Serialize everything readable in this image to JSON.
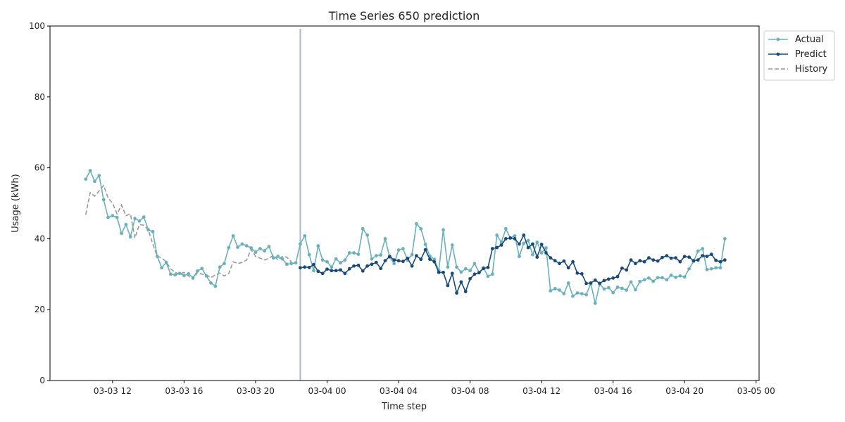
{
  "chart_data": {
    "type": "line",
    "title": "Time Series 650 prediction",
    "xlabel": "Time step",
    "ylabel": "Usage (kWh)",
    "ylim": [
      0,
      100
    ],
    "yticks": [
      "0",
      "20",
      "40",
      "60",
      "80",
      "100"
    ],
    "xlim": [
      "2024-03-03 08:30",
      "2024-03-05 00:10"
    ],
    "xticks": [
      {
        "t": "2024-03-03 12:00",
        "label": "03-03 12"
      },
      {
        "t": "2024-03-03 16:00",
        "label": "03-03 16"
      },
      {
        "t": "2024-03-03 20:00",
        "label": "03-03 20"
      },
      {
        "t": "2024-03-04 00:00",
        "label": "03-04 00"
      },
      {
        "t": "2024-03-04 04:00",
        "label": "03-04 04"
      },
      {
        "t": "2024-03-04 08:00",
        "label": "03-04 08"
      },
      {
        "t": "2024-03-04 12:00",
        "label": "03-04 12"
      },
      {
        "t": "2024-03-04 16:00",
        "label": "03-04 16"
      },
      {
        "t": "2024-03-04 20:00",
        "label": "03-04 20"
      },
      {
        "t": "2024-03-05 00:00",
        "label": "03-05 00"
      }
    ],
    "interval_minutes": 15,
    "forecast_start": "2024-03-03 22:30",
    "legend": {
      "placement": "outside-top-right",
      "entries": [
        "Actual",
        "Predict",
        "History"
      ]
    },
    "grid": false,
    "series": [
      {
        "name": "Actual",
        "color": "#6ab0bd",
        "marker": "dot",
        "line": "solid",
        "start": "2024-03-03 10:30",
        "values": [
          56.8,
          59.2,
          56.2,
          57.8,
          51.0,
          46.0,
          46.5,
          46.0,
          41.5,
          44.0,
          40.5,
          45.7,
          45.0,
          46.1,
          42.5,
          42.0,
          35.0,
          31.8,
          33.3,
          30.0,
          29.8,
          30.2,
          29.6,
          30.1,
          29.0,
          30.9,
          31.6,
          29.5,
          27.5,
          26.6,
          32.0,
          33.0,
          37.5,
          40.8,
          37.6,
          38.5,
          38.0,
          37.4,
          36.2,
          37.2,
          36.6,
          37.8,
          34.6,
          35.0,
          34.3,
          32.8,
          33.0,
          33.2,
          38.5,
          40.8,
          35.5,
          31.0,
          38.0,
          34.0,
          33.5,
          32.0,
          34.3,
          33.2,
          34.0,
          36.0,
          36.0,
          35.6,
          42.8,
          41.0,
          34.3,
          35.2,
          35.4,
          40.0,
          34.8,
          33.0,
          36.8,
          37.2,
          34.0,
          35.5,
          44.2,
          42.8,
          38.4,
          35.1,
          34.2,
          31.0,
          42.5,
          32.0,
          38.2,
          32.0,
          30.6,
          31.5,
          31.0,
          33.0,
          30.5,
          31.8,
          29.4,
          30.0,
          41.0,
          39.0,
          42.8,
          40.2,
          40.8,
          35.0,
          38.7,
          39.5,
          35.5,
          39.0,
          36.0,
          37.4,
          25.3,
          25.9,
          25.5,
          24.5,
          27.5,
          23.8,
          24.7,
          24.5,
          24.2,
          27.4,
          21.8,
          27.2,
          25.8,
          26.2,
          24.8,
          26.3,
          26.0,
          25.5,
          27.8,
          25.6,
          27.9,
          28.4,
          28.9,
          28.0,
          29.0,
          29.0,
          28.4,
          29.7,
          29.1,
          29.5,
          29.2,
          31.5,
          33.6,
          36.5,
          37.2,
          31.3,
          31.5,
          31.8,
          31.8,
          40.0
        ]
      },
      {
        "name": "Predict",
        "color": "#1a4a7a",
        "marker": "dot",
        "line": "solid",
        "start": "2024-03-03 22:30",
        "values": [
          31.8,
          32.0,
          31.9,
          32.7,
          30.8,
          30.2,
          31.4,
          31.0,
          31.0,
          31.2,
          30.2,
          31.5,
          32.3,
          32.5,
          30.9,
          32.3,
          32.8,
          33.3,
          31.6,
          33.8,
          35.0,
          34.0,
          33.8,
          33.6,
          34.5,
          32.3,
          35.2,
          34.2,
          36.9,
          34.2,
          33.5,
          30.5,
          30.5,
          26.8,
          30.2,
          24.7,
          27.8,
          25.1,
          28.7,
          30.0,
          30.4,
          31.6,
          31.9,
          37.2,
          37.5,
          38.2,
          40.0,
          40.2,
          40.0,
          38.5,
          41.0,
          37.5,
          38.5,
          34.8,
          38.4,
          36.0,
          34.6,
          33.8,
          33.0,
          33.7,
          31.8,
          33.5,
          30.3,
          30.1,
          27.4,
          27.5,
          28.3,
          27.4,
          28.2,
          28.6,
          28.9,
          29.3,
          31.7,
          31.2,
          34.0,
          33.0,
          33.8,
          33.5,
          34.6,
          34.0,
          33.7,
          34.7,
          35.2,
          34.5,
          34.6,
          33.5,
          35.0,
          34.8,
          33.8,
          34.0,
          35.2,
          35.0,
          35.6,
          33.9,
          33.5,
          34.0
        ]
      },
      {
        "name": "History",
        "color": "#999999",
        "marker": "none",
        "line": "dashed",
        "start": "2024-03-03 10:30",
        "values": [
          46.8,
          53.0,
          52.0,
          53.5,
          55.0,
          51.5,
          50.0,
          47.0,
          49.5,
          46.5,
          47.0,
          40.2,
          44.0,
          43.8,
          42.5,
          38.5,
          35.0,
          34.6,
          33.5,
          31.5,
          30.5,
          30.0,
          30.5,
          29.5,
          28.5,
          30.5,
          30.0,
          29.8,
          29.0,
          29.8,
          30.3,
          29.5,
          30.2,
          33.5,
          33.0,
          33.3,
          34.0,
          37.0,
          35.0,
          34.5,
          34.0,
          34.5,
          35.3,
          34.0,
          35.0,
          34.8,
          33.5
        ]
      }
    ]
  }
}
